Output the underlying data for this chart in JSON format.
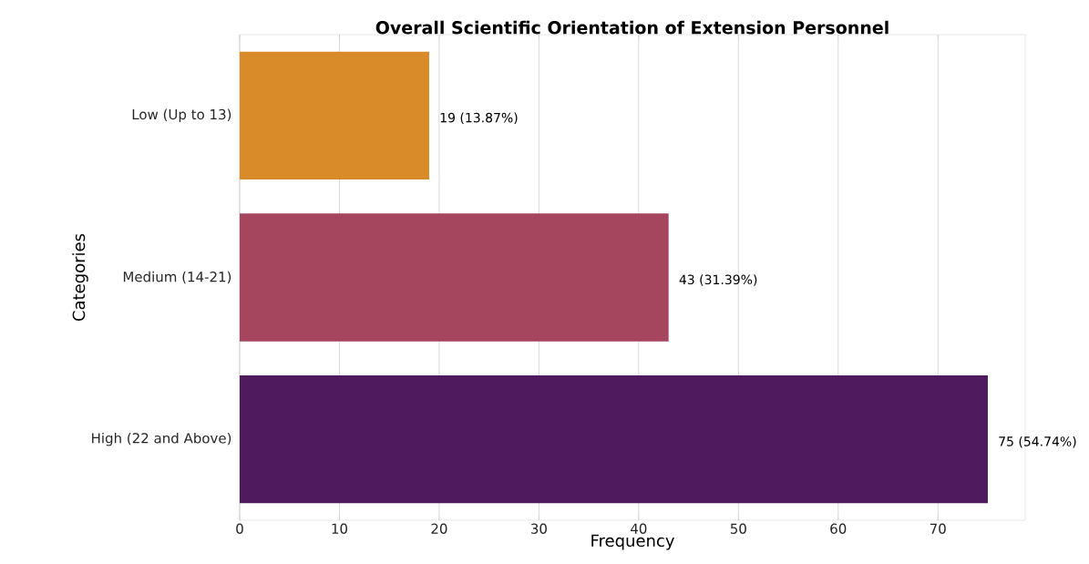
{
  "chart_data": {
    "type": "bar",
    "orientation": "horizontal",
    "title": "Overall Scientific Orientation of Extension Personnel",
    "xlabel": "Frequency",
    "ylabel": "Categories",
    "categories": [
      "Low (Up to 13)",
      "Medium (14-21)",
      "High (22 and Above)"
    ],
    "values": [
      19,
      43,
      75
    ],
    "colors": [
      "#d98a29",
      "#a6465e",
      "#501a5e"
    ],
    "value_labels": [
      "19 (13.87%)",
      "43 (31.39%)",
      "75 (54.74%)"
    ],
    "xlim": [
      0,
      78.75
    ],
    "xticks": [
      0,
      10,
      20,
      30,
      40,
      50,
      60,
      70
    ],
    "grid": "x"
  }
}
